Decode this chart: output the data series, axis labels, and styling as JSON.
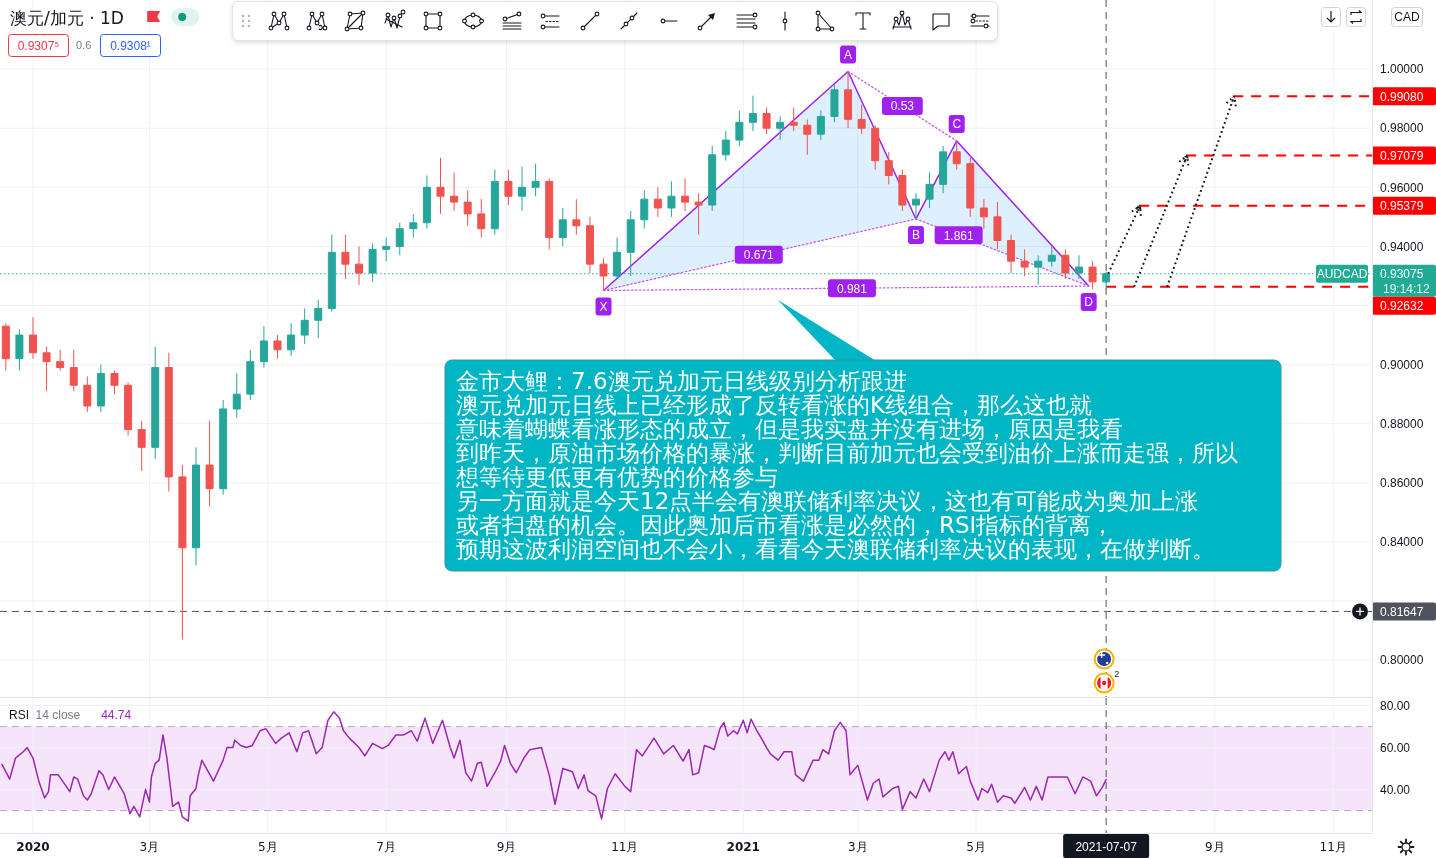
{
  "chart_data": [
    {
      "type": "candlestick",
      "title": "澳元/加元 · 1D",
      "ylabel": "CAD",
      "x": [
        "2019-12-18",
        "2019-12-25",
        "2020-01-01",
        "2020-01-08",
        "2020-01-15",
        "2020-01-22",
        "2020-01-29",
        "2020-02-05",
        "2020-02-12",
        "2020-02-19",
        "2020-02-26",
        "2020-03-04",
        "2020-03-11",
        "2020-03-18",
        "2020-03-25",
        "2020-04-01",
        "2020-04-08",
        "2020-04-15",
        "2020-04-22",
        "2020-04-29",
        "2020-05-06",
        "2020-05-13",
        "2020-05-20",
        "2020-05-27",
        "2020-06-03",
        "2020-06-10",
        "2020-06-17",
        "2020-06-24",
        "2020-07-01",
        "2020-07-08",
        "2020-07-15",
        "2020-07-22",
        "2020-07-29",
        "2020-08-05",
        "2020-08-12",
        "2020-08-19",
        "2020-08-26",
        "2020-09-02",
        "2020-09-09",
        "2020-09-16",
        "2020-09-23",
        "2020-09-30",
        "2020-10-07",
        "2020-10-14",
        "2020-10-21",
        "2020-10-28",
        "2020-11-04",
        "2020-11-11",
        "2020-11-18",
        "2020-11-25",
        "2020-12-02",
        "2020-12-09",
        "2020-12-16",
        "2020-12-23",
        "2020-12-30",
        "2021-01-06",
        "2021-01-13",
        "2021-01-20",
        "2021-01-27",
        "2021-02-03",
        "2021-02-10",
        "2021-02-17",
        "2021-02-24",
        "2021-03-03",
        "2021-03-10",
        "2021-03-17",
        "2021-03-24",
        "2021-03-31",
        "2021-04-07",
        "2021-04-14",
        "2021-04-21",
        "2021-04-28",
        "2021-05-05",
        "2021-05-12",
        "2021-05-19",
        "2021-05-26",
        "2021-06-02",
        "2021-06-09",
        "2021-06-16",
        "2021-06-23",
        "2021-06-30",
        "2021-07-07"
      ],
      "ohlc": [
        [
          0.913,
          0.914,
          0.898,
          0.902
        ],
        [
          0.902,
          0.912,
          0.898,
          0.91
        ],
        [
          0.91,
          0.916,
          0.902,
          0.904
        ],
        [
          0.904,
          0.906,
          0.891,
          0.901
        ],
        [
          0.901,
          0.905,
          0.898,
          0.899
        ],
        [
          0.899,
          0.905,
          0.891,
          0.893
        ],
        [
          0.893,
          0.896,
          0.884,
          0.886
        ],
        [
          0.886,
          0.9,
          0.884,
          0.897
        ],
        [
          0.897,
          0.898,
          0.89,
          0.893
        ],
        [
          0.893,
          0.894,
          0.876,
          0.878
        ],
        [
          0.878,
          0.881,
          0.864,
          0.872
        ],
        [
          0.872,
          0.906,
          0.868,
          0.899
        ],
        [
          0.899,
          0.904,
          0.857,
          0.862
        ],
        [
          0.862,
          0.866,
          0.807,
          0.838
        ],
        [
          0.838,
          0.872,
          0.832,
          0.866
        ],
        [
          0.866,
          0.881,
          0.852,
          0.858
        ],
        [
          0.858,
          0.888,
          0.856,
          0.885
        ],
        [
          0.885,
          0.897,
          0.882,
          0.89
        ],
        [
          0.89,
          0.905,
          0.888,
          0.901
        ],
        [
          0.901,
          0.913,
          0.899,
          0.908
        ],
        [
          0.908,
          0.91,
          0.902,
          0.905
        ],
        [
          0.905,
          0.914,
          0.903,
          0.91
        ],
        [
          0.91,
          0.919,
          0.907,
          0.915
        ],
        [
          0.915,
          0.922,
          0.909,
          0.919
        ],
        [
          0.919,
          0.944,
          0.918,
          0.938
        ],
        [
          0.938,
          0.944,
          0.929,
          0.934
        ],
        [
          0.934,
          0.94,
          0.927,
          0.931
        ],
        [
          0.931,
          0.941,
          0.928,
          0.939
        ],
        [
          0.939,
          0.943,
          0.935,
          0.94
        ],
        [
          0.94,
          0.948,
          0.937,
          0.946
        ],
        [
          0.946,
          0.951,
          0.943,
          0.948
        ],
        [
          0.948,
          0.964,
          0.946,
          0.96
        ],
        [
          0.96,
          0.97,
          0.951,
          0.957
        ],
        [
          0.957,
          0.965,
          0.952,
          0.955
        ],
        [
          0.955,
          0.959,
          0.947,
          0.951
        ],
        [
          0.951,
          0.956,
          0.943,
          0.946
        ],
        [
          0.946,
          0.966,
          0.944,
          0.962
        ],
        [
          0.962,
          0.966,
          0.954,
          0.957
        ],
        [
          0.957,
          0.967,
          0.952,
          0.96
        ],
        [
          0.96,
          0.968,
          0.957,
          0.962
        ],
        [
          0.962,
          0.963,
          0.939,
          0.943
        ],
        [
          0.943,
          0.953,
          0.94,
          0.949
        ],
        [
          0.949,
          0.956,
          0.944,
          0.947
        ],
        [
          0.947,
          0.95,
          0.931,
          0.934
        ],
        [
          0.934,
          0.936,
          0.925,
          0.93
        ],
        [
          0.93,
          0.943,
          0.929,
          0.938
        ],
        [
          0.938,
          0.952,
          0.93,
          0.949
        ],
        [
          0.949,
          0.959,
          0.946,
          0.956
        ],
        [
          0.956,
          0.96,
          0.95,
          0.953
        ],
        [
          0.953,
          0.962,
          0.95,
          0.957
        ],
        [
          0.957,
          0.963,
          0.952,
          0.955
        ],
        [
          0.955,
          0.958,
          0.944,
          0.954
        ],
        [
          0.954,
          0.974,
          0.952,
          0.971
        ],
        [
          0.971,
          0.979,
          0.969,
          0.976
        ],
        [
          0.976,
          0.986,
          0.974,
          0.982
        ],
        [
          0.982,
          0.991,
          0.979,
          0.985
        ],
        [
          0.985,
          0.987,
          0.978,
          0.98
        ],
        [
          0.98,
          0.984,
          0.976,
          0.982
        ],
        [
          0.982,
          0.987,
          0.979,
          0.981
        ],
        [
          0.981,
          0.983,
          0.971,
          0.978
        ],
        [
          0.978,
          0.986,
          0.976,
          0.984
        ],
        [
          0.984,
          0.995,
          0.982,
          0.993
        ],
        [
          0.993,
          0.9992,
          0.98,
          0.983
        ],
        [
          0.983,
          0.988,
          0.978,
          0.98
        ],
        [
          0.98,
          0.981,
          0.966,
          0.969
        ],
        [
          0.969,
          0.972,
          0.961,
          0.964
        ],
        [
          0.964,
          0.966,
          0.952,
          0.954
        ],
        [
          0.954,
          0.958,
          0.9493,
          0.956
        ],
        [
          0.956,
          0.965,
          0.953,
          0.961
        ],
        [
          0.961,
          0.974,
          0.958,
          0.972
        ],
        [
          0.972,
          0.9757,
          0.966,
          0.968
        ],
        [
          0.968,
          0.97,
          0.95,
          0.953
        ],
        [
          0.953,
          0.956,
          0.946,
          0.95
        ],
        [
          0.95,
          0.955,
          0.939,
          0.942
        ],
        [
          0.942,
          0.944,
          0.931,
          0.935
        ],
        [
          0.935,
          0.939,
          0.93,
          0.933
        ],
        [
          0.933,
          0.937,
          0.927,
          0.935
        ],
        [
          0.935,
          0.94,
          0.933,
          0.937
        ],
        [
          0.937,
          0.939,
          0.929,
          0.931
        ],
        [
          0.931,
          0.937,
          0.929,
          0.933
        ],
        [
          0.933,
          0.935,
          0.9255,
          0.928
        ],
        [
          0.928,
          0.9315,
          0.9252,
          0.93075
        ]
      ],
      "colors": [
        "#ef5350",
        "#26a69a",
        "#ef5350",
        "#ef5350",
        "#ef5350",
        "#ef5350",
        "#ef5350",
        "#26a69a",
        "#ef5350",
        "#ef5350",
        "#ef5350",
        "#26a69a",
        "#ef5350",
        "#ef5350",
        "#26a69a",
        "#ef5350",
        "#26a69a",
        "#26a69a",
        "#26a69a",
        "#26a69a",
        "#ef5350",
        "#26a69a",
        "#26a69a",
        "#26a69a",
        "#26a69a",
        "#ef5350",
        "#ef5350",
        "#26a69a",
        "#26a69a",
        "#26a69a",
        "#26a69a",
        "#26a69a",
        "#ef5350",
        "#ef5350",
        "#ef5350",
        "#ef5350",
        "#26a69a",
        "#ef5350",
        "#26a69a",
        "#26a69a",
        "#ef5350",
        "#26a69a",
        "#ef5350",
        "#ef5350",
        "#ef5350",
        "#26a69a",
        "#26a69a",
        "#26a69a",
        "#ef5350",
        "#26a69a",
        "#ef5350",
        "#ef5350",
        "#26a69a",
        "#26a69a",
        "#26a69a",
        "#26a69a",
        "#ef5350",
        "#26a69a",
        "#ef5350",
        "#ef5350",
        "#26a69a",
        "#26a69a",
        "#ef5350",
        "#ef5350",
        "#ef5350",
        "#ef5350",
        "#ef5350",
        "#26a69a",
        "#26a69a",
        "#26a69a",
        "#ef5350",
        "#ef5350",
        "#ef5350",
        "#ef5350",
        "#ef5350",
        "#ef5350",
        "#26a69a",
        "#26a69a",
        "#ef5350",
        "#26a69a",
        "#ef5350",
        "#26a69a"
      ],
      "series": [
        {
          "type": "line",
          "color": "#a020f0",
          "x": [
            "2020-10-21",
            "2021-02-24",
            "2021-03-31",
            "2021-04-21",
            "2021-06-28"
          ],
          "values": [
            0.9251,
            0.9992,
            0.9493,
            0.9757,
            0.9266
          ]
        },
        {
          "type": "line",
          "color": "#c45ce8",
          "line_style": "dotted",
          "x": [
            "2020-10-21",
            "2021-03-31"
          ],
          "values": [
            0.9251,
            0.9493
          ]
        },
        {
          "type": "line",
          "color": "#c45ce8",
          "line_style": "dotted",
          "x": [
            "2021-02-24",
            "2021-04-21"
          ],
          "values": [
            0.9992,
            0.9757
          ]
        },
        {
          "type": "line",
          "color": "#c45ce8",
          "line_style": "dotted",
          "x": [
            "2021-03-31",
            "2021-06-28"
          ],
          "values": [
            0.9493,
            0.9266
          ]
        },
        {
          "type": "line",
          "color": "#c45ce8",
          "line_style": "dotted",
          "x": [
            "2020-10-21",
            "2021-06-28"
          ],
          "values": [
            0.9251,
            0.9266
          ]
        }
      ],
      "annotations": [
        "金市大鲤：7.6澳元兑加元日线级别分析跟进",
        "澳元兑加元日线上已经形成了反转看涨的K线组合，那么这也就",
        "意味着蝴蝶看涨形态的成立，但是我实盘并没有进场，原因是我看",
        "到昨天，原油市场价格的暴涨，判断目前加元也会受到油价上涨而走强，所以",
        "想等待更低更有优势的价格参与",
        "另一方面就是今天12点半会有澳联储利率决议，这也有可能成为奥加上涨",
        "或者扫盘的机会。因此奥加后市看涨是必然的，RSI指标的背离，",
        "预期这波利润空间也不会小，看看今天澳联储利率决议的表现，在做判断。",
        {
          "text": "X",
          "x": "2020-10-21",
          "y": 0.9251
        },
        {
          "text": "A",
          "x": "2021-02-24",
          "y": 0.9992
        },
        {
          "text": "B",
          "x": "2021-03-31",
          "y": 0.9493
        },
        {
          "text": "C",
          "x": "2021-04-21",
          "y": 0.9757
        },
        {
          "text": "D",
          "x": "2021-06-28",
          "y": 0.9266
        },
        {
          "text": "0.671",
          "x": "2021-01-09",
          "y": 0.9372
        },
        {
          "text": "0.53",
          "x": "2021-03-24",
          "y": 0.9875
        },
        {
          "text": "1.861",
          "x": "2021-04-22",
          "y": 0.9438
        },
        {
          "text": "0.981",
          "x": "2021-02-26",
          "y": 0.9258
        },
        "AUDCAD",
        "19:14:12",
        "0.9307⁵",
        "0.6",
        "0.9308¹",
        "2"
      ],
      "xlim": [
        "2019-12-15",
        "2021-11-21"
      ],
      "xticks": [
        {
          "value": "2020-01-01",
          "label": null
        },
        {
          "value": "2020-03-01",
          "label": null
        },
        {
          "value": "2020-05-01",
          "label": null
        },
        {
          "value": "2020-07-01",
          "label": null
        },
        {
          "value": "2020-09-01",
          "label": null
        },
        {
          "value": "2020-11-01",
          "label": null
        },
        {
          "value": "2021-01-01",
          "label": null
        },
        {
          "value": "2021-03-01",
          "label": null
        },
        {
          "value": "2021-05-01",
          "label": null
        },
        {
          "value": "2021-09-01",
          "label": null
        },
        {
          "value": "2021-11-01",
          "label": null
        }
      ],
      "ylim": [
        0.7875,
        1.0234
      ],
      "yticks": [
        {
          "value": 0.8,
          "label": "0.80000"
        },
        {
          "value": 0.82,
          "label": null
        },
        {
          "value": 0.84,
          "label": "0.84000"
        },
        {
          "value": 0.86,
          "label": "0.86000"
        },
        {
          "value": 0.88,
          "label": "0.88000"
        },
        {
          "value": 0.9,
          "label": "0.90000"
        },
        {
          "value": 0.92,
          "label": null
        },
        {
          "value": 0.94,
          "label": "0.94000"
        },
        {
          "value": 0.96,
          "label": "0.96000"
        },
        {
          "value": 0.98,
          "label": "0.98000"
        },
        {
          "value": 1.0,
          "label": "1.00000"
        }
      ],
      "grid": true,
      "tick_labels": "y",
      "ref_lines": [
        {
          "axis": "y",
          "value": 0.9908,
          "label": "0.99080",
          "color": "#ff0000",
          "line_style": "dashed"
        },
        {
          "axis": "y",
          "value": 0.97079,
          "label": "0.97079",
          "color": "#ff0000",
          "line_style": "dashed"
        },
        {
          "axis": "y",
          "value": 0.95379,
          "label": "0.95379",
          "color": "#ff0000",
          "line_style": "dashed"
        },
        {
          "axis": "y",
          "value": 0.92632,
          "label": "0.92632",
          "color": "#ff0000",
          "line_style": "dashed"
        },
        {
          "axis": "y",
          "value": 0.93075,
          "label": "0.93075",
          "color": "#22ab94",
          "line_style": "dotted"
        },
        {
          "axis": "y",
          "value": 0.81647,
          "label": "0.81647",
          "color": "#50535e",
          "line_style": "dashed"
        },
        {
          "axis": "x",
          "value": "2021-07-07",
          "color": "#50535e",
          "line_style": "dashed"
        }
      ]
    },
    {
      "type": "line",
      "title": "RSI",
      "subtitle": "14 close",
      "annotations": [
        "44.74"
      ],
      "series": [
        {
          "color": "#9c27b0",
          "x": [
            "2019-12-16",
            "2019-12-20",
            "2019-12-23",
            "2019-12-27",
            "2019-12-29",
            "2020-01-01",
            "2020-01-04",
            "2020-01-07",
            "2020-01-09",
            "2020-01-10",
            "2020-01-14",
            "2020-01-20",
            "2020-01-22",
            "2020-01-24",
            "2020-01-27",
            "2020-01-29",
            "2020-01-31",
            "2020-02-04",
            "2020-02-06",
            "2020-02-09",
            "2020-02-12",
            "2020-02-17",
            "2020-02-20",
            "2020-02-22",
            "2020-02-25",
            "2020-02-28",
            "2020-03-01",
            "2020-03-02",
            "2020-03-04",
            "2020-03-06",
            "2020-03-08",
            "2020-03-10",
            "2020-03-13",
            "2020-03-16",
            "2020-03-18",
            "2020-03-21",
            "2020-03-22",
            "2020-03-25",
            "2020-03-26",
            "2020-03-28",
            "2020-03-31",
            "2020-04-03",
            "2020-04-05",
            "2020-04-08",
            "2020-04-10",
            "2020-04-13",
            "2020-04-14",
            "2020-04-17",
            "2020-04-20",
            "2020-04-23",
            "2020-04-27",
            "2020-04-30",
            "2020-05-05",
            "2020-05-08",
            "2020-05-12",
            "2020-05-16",
            "2020-05-19",
            "2020-05-22",
            "2020-05-26",
            "2020-05-29",
            "2020-06-01",
            "2020-06-04",
            "2020-06-07",
            "2020-06-09",
            "2020-06-12",
            "2020-06-17",
            "2020-06-20",
            "2020-06-24",
            "2020-06-29",
            "2020-07-02",
            "2020-07-06",
            "2020-07-10",
            "2020-07-14",
            "2020-07-17",
            "2020-07-21",
            "2020-07-25",
            "2020-07-30",
            "2020-08-03",
            "2020-08-05",
            "2020-08-08",
            "2020-08-11",
            "2020-08-14",
            "2020-08-17",
            "2020-08-19",
            "2020-08-22",
            "2020-08-26",
            "2020-08-29",
            "2020-08-31",
            "2020-09-03",
            "2020-09-06",
            "2020-09-10",
            "2020-09-13",
            "2020-09-19",
            "2020-09-23",
            "2020-09-26",
            "2020-09-30",
            "2020-10-05",
            "2020-10-08",
            "2020-10-11",
            "2020-10-13",
            "2020-10-17",
            "2020-10-20",
            "2020-10-23",
            "2020-10-27",
            "2020-11-01",
            "2020-11-04",
            "2020-11-07",
            "2020-11-10",
            "2020-11-16",
            "2020-11-21",
            "2020-11-26",
            "2020-12-01",
            "2020-12-04",
            "2020-12-06",
            "2020-12-09",
            "2020-12-12",
            "2020-12-15",
            "2020-12-17",
            "2020-12-20",
            "2020-12-22",
            "2020-12-24",
            "2020-12-27",
            "2020-12-29",
            "2021-01-01",
            "2021-01-03",
            "2021-01-05",
            "2021-01-08",
            "2021-01-10",
            "2021-01-13",
            "2021-01-15",
            "2021-01-19",
            "2021-01-22",
            "2021-01-26",
            "2021-01-28",
            "2021-02-01",
            "2021-02-06",
            "2021-02-09",
            "2021-02-11",
            "2021-02-14",
            "2021-02-17",
            "2021-02-20",
            "2021-02-23",
            "2021-02-25",
            "2021-03-01",
            "2021-03-06",
            "2021-03-09",
            "2021-03-12",
            "2021-03-14",
            "2021-03-19",
            "2021-03-22",
            "2021-03-24",
            "2021-03-28",
            "2021-03-31",
            "2021-04-04",
            "2021-04-07",
            "2021-04-12",
            "2021-04-15",
            "2021-04-17",
            "2021-04-19",
            "2021-04-22",
            "2021-04-26",
            "2021-04-28",
            "2021-05-02",
            "2021-05-04",
            "2021-05-07",
            "2021-05-09",
            "2021-05-12",
            "2021-05-15",
            "2021-05-19",
            "2021-05-21",
            "2021-05-26",
            "2021-05-29",
            "2021-06-01",
            "2021-06-04",
            "2021-06-07",
            "2021-06-12",
            "2021-06-17",
            "2021-06-21",
            "2021-06-25",
            "2021-06-29",
            "2021-07-02",
            "2021-07-05",
            "2021-07-07"
          ],
          "values": [
            52,
            45,
            55,
            58,
            60,
            55,
            44,
            36,
            39,
            47,
            47,
            39,
            46,
            45,
            37,
            35,
            38,
            49,
            47,
            40,
            46,
            38,
            28.5,
            32,
            27,
            40,
            34,
            46,
            52.5,
            54,
            66,
            55,
            32,
            34,
            27,
            25,
            37,
            40.5,
            46,
            54,
            49,
            44,
            48,
            54,
            60,
            60,
            63.5,
            61,
            60,
            61,
            68,
            69,
            62,
            64.5,
            67,
            58,
            67,
            68,
            57,
            60,
            73,
            77,
            74,
            68,
            64.5,
            60,
            56,
            62,
            59.5,
            61,
            66,
            66,
            68,
            63,
            74,
            62,
            73,
            60,
            55,
            63.5,
            48,
            44,
            52.5,
            53,
            41.5,
            48,
            53.5,
            61,
            52.5,
            48,
            55,
            59,
            60,
            47,
            33,
            50,
            48.5,
            40.5,
            47,
            39.5,
            37,
            26,
            40.5,
            47.5,
            41.5,
            39,
            59,
            56,
            64.5,
            57,
            61,
            53.5,
            59,
            47,
            48,
            61,
            60,
            59,
            69,
            72,
            65.5,
            68,
            66.5,
            73,
            67,
            73.5,
            68,
            65,
            60,
            57,
            54,
            58,
            58,
            47,
            44,
            54,
            54,
            59,
            57,
            68,
            72,
            68,
            47,
            51.5,
            35,
            43,
            45,
            36.5,
            40.5,
            41.5,
            30.5,
            39,
            36,
            45,
            39,
            54,
            58,
            54,
            58,
            47.5,
            51,
            44,
            35,
            40.5,
            38.5,
            42.5,
            34,
            37,
            36,
            33.5,
            41,
            35,
            41.5,
            35,
            46,
            46,
            46,
            38,
            46,
            44,
            37,
            41,
            44.74
          ]
        }
      ],
      "xlim": [
        "2019-12-15",
        "2021-11-21"
      ],
      "xticks": [
        {
          "value": "2020-01-01",
          "label": "2020"
        },
        {
          "value": "2020-03-01",
          "label": "3月"
        },
        {
          "value": "2020-05-01",
          "label": "5月"
        },
        {
          "value": "2020-07-01",
          "label": "7月"
        },
        {
          "value": "2020-09-01",
          "label": "9月"
        },
        {
          "value": "2020-11-01",
          "label": "11月"
        },
        {
          "value": "2021-01-01",
          "label": "2021"
        },
        {
          "value": "2021-03-01",
          "label": "3月"
        },
        {
          "value": "2021-05-01",
          "label": "5月"
        },
        {
          "value": "2021-09-01",
          "label": "9月"
        },
        {
          "value": "2021-11-01",
          "label": "11月"
        }
      ],
      "ylim": [
        19.3,
        83.6
      ],
      "yticks": [
        {
          "value": 40,
          "label": "40.00"
        },
        {
          "value": 60,
          "label": "60.00"
        },
        {
          "value": 80,
          "label": "80.00"
        }
      ],
      "grid": true,
      "bands": [
        {
          "axis": "y",
          "from": 30,
          "to": 70,
          "color": "#f6e4fb"
        }
      ],
      "ref_lines": [
        {
          "axis": "y",
          "value": 70,
          "color": "#b8a9c0",
          "line_style": "dashed"
        },
        {
          "axis": "y",
          "value": 30,
          "color": "#b8a9c0",
          "line_style": "dashed"
        },
        {
          "axis": "x",
          "value": "2021-07-07",
          "label": "2021-07-07",
          "color": "#50535e",
          "line_style": "dashed"
        }
      ]
    }
  ]
}
